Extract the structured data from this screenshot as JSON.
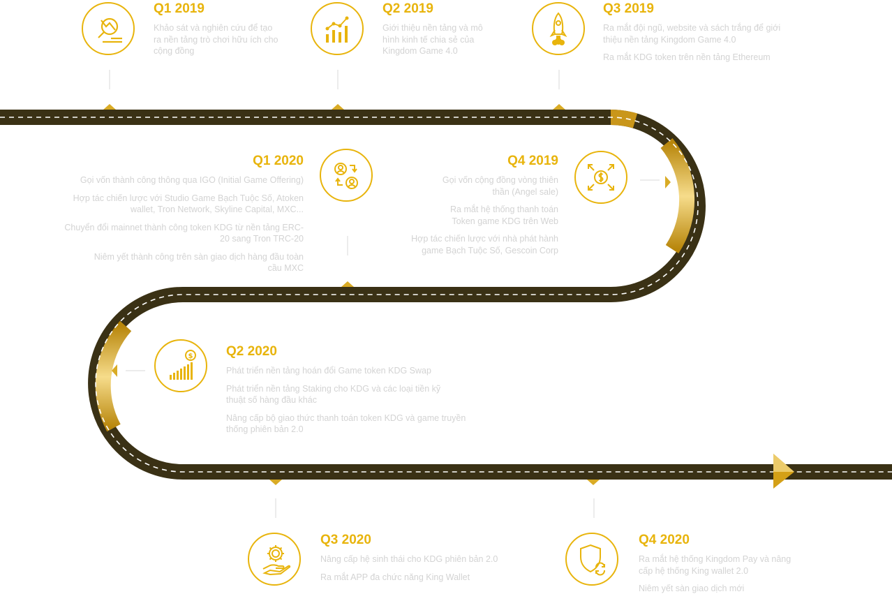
{
  "colors": {
    "gold": "#e8b40c",
    "road_dark": "#3a3115",
    "text_gray": "#d3d3d3"
  },
  "milestones": [
    {
      "period": "Q1 2019",
      "icon": "chart-magnifier-icon",
      "items": [
        "Khảo sát và nghiên cứu để tạo ra nền tảng trò chơi hữu ích cho cộng đồng"
      ]
    },
    {
      "period": "Q2 2019",
      "icon": "growth-chart-icon",
      "items": [
        "Giới thiệu nền tảng và mô hình kinh tế chia sẻ của Kingdom Game 4.0"
      ]
    },
    {
      "period": "Q3 2019",
      "icon": "rocket-icon",
      "items": [
        "Ra mắt đội ngũ, website và sách trắng để giới thiệu nền tảng Kingdom Game 4.0",
        "Ra mắt KDG token trên nền tảng Ethereum"
      ]
    },
    {
      "period": "Q4 2019",
      "icon": "dollar-expand-icon",
      "items": [
        "Gọi vốn cộng đồng vòng thiên thần (Angel sale)",
        "Ra mắt hệ thống thanh toán Token game KDG trên Web",
        "Hợp tác chiến lược với nhà phát hành game Bạch Tuộc Số, Gescoin Corp"
      ]
    },
    {
      "period": "Q1 2020",
      "icon": "user-exchange-icon",
      "items": [
        "Gọi vốn thành công thông qua IGO (Initial Game Offering)",
        "Hợp tác chiến lược với Studio Game Bạch Tuộc Số, Atoken wallet, Tron Network, Skyline Capital, MXC...",
        "Chuyển đổi mainnet thành công token KDG từ nền tảng ERC-20 sang Tron TRC-20",
        "Niêm yết thành công trên sàn giao dịch hàng đầu toàn cầu MXC"
      ]
    },
    {
      "period": "Q2 2020",
      "icon": "coin-bar-chart-icon",
      "items": [
        "Phát triển nền tảng hoán đổi Game token KDG Swap",
        "Phát triển nền tảng Staking cho KDG và các loại tiền kỹ thuật số hàng đầu khác",
        "Nâng cấp bộ giao thức thanh toán token KDG và game truyền thống phiên bản 2.0"
      ]
    },
    {
      "period": "Q3 2020",
      "icon": "gear-hand-icon",
      "items": [
        "Nâng cấp hệ sinh thái cho KDG phiên bản 2.0",
        "Ra mắt APP đa chức năng King Wallet"
      ]
    },
    {
      "period": "Q4 2020",
      "icon": "shield-refresh-icon",
      "items": [
        "Ra mắt hệ thống Kingdom Pay và nâng cấp hệ thống King wallet 2.0",
        "Niêm yết sàn giao dịch mới"
      ]
    }
  ]
}
